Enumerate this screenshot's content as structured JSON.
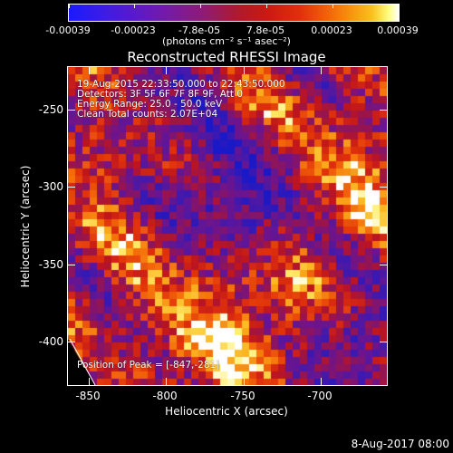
{
  "colorbar": {
    "tick_labels": [
      "-0.00039",
      "-0.00023",
      "-7.8e-05",
      "7.8e-05",
      "0.00023",
      "0.00039"
    ],
    "units_label": "(photons cm⁻² s⁻¹ asec⁻²)"
  },
  "plot": {
    "title": "Reconstructed RHESSI Image",
    "info_lines": [
      "19-Aug-2015 22:33:50.000 to 22:43:50.000",
      "Detectors: 3F 5F 6F 7F 8F 9F, Att 0",
      "Energy Range: 25.0 - 50.0 keV",
      "Clean    Total counts: 2.07E+04"
    ],
    "peak_text": "Position of Peak = [-847,-281]",
    "xlabel": "Heliocentric X (arcsec)",
    "ylabel": "Heliocentric Y (arcsec)",
    "x_ticks": [
      "-850",
      "-800",
      "-750",
      "-700"
    ],
    "y_ticks": [
      "-250",
      "-300",
      "-350",
      "-400"
    ],
    "xlim": [
      -861,
      -672
    ],
    "ylim": [
      -417,
      -228
    ]
  },
  "footer": {
    "timestamp": "8-Aug-2017 08:00"
  }
}
